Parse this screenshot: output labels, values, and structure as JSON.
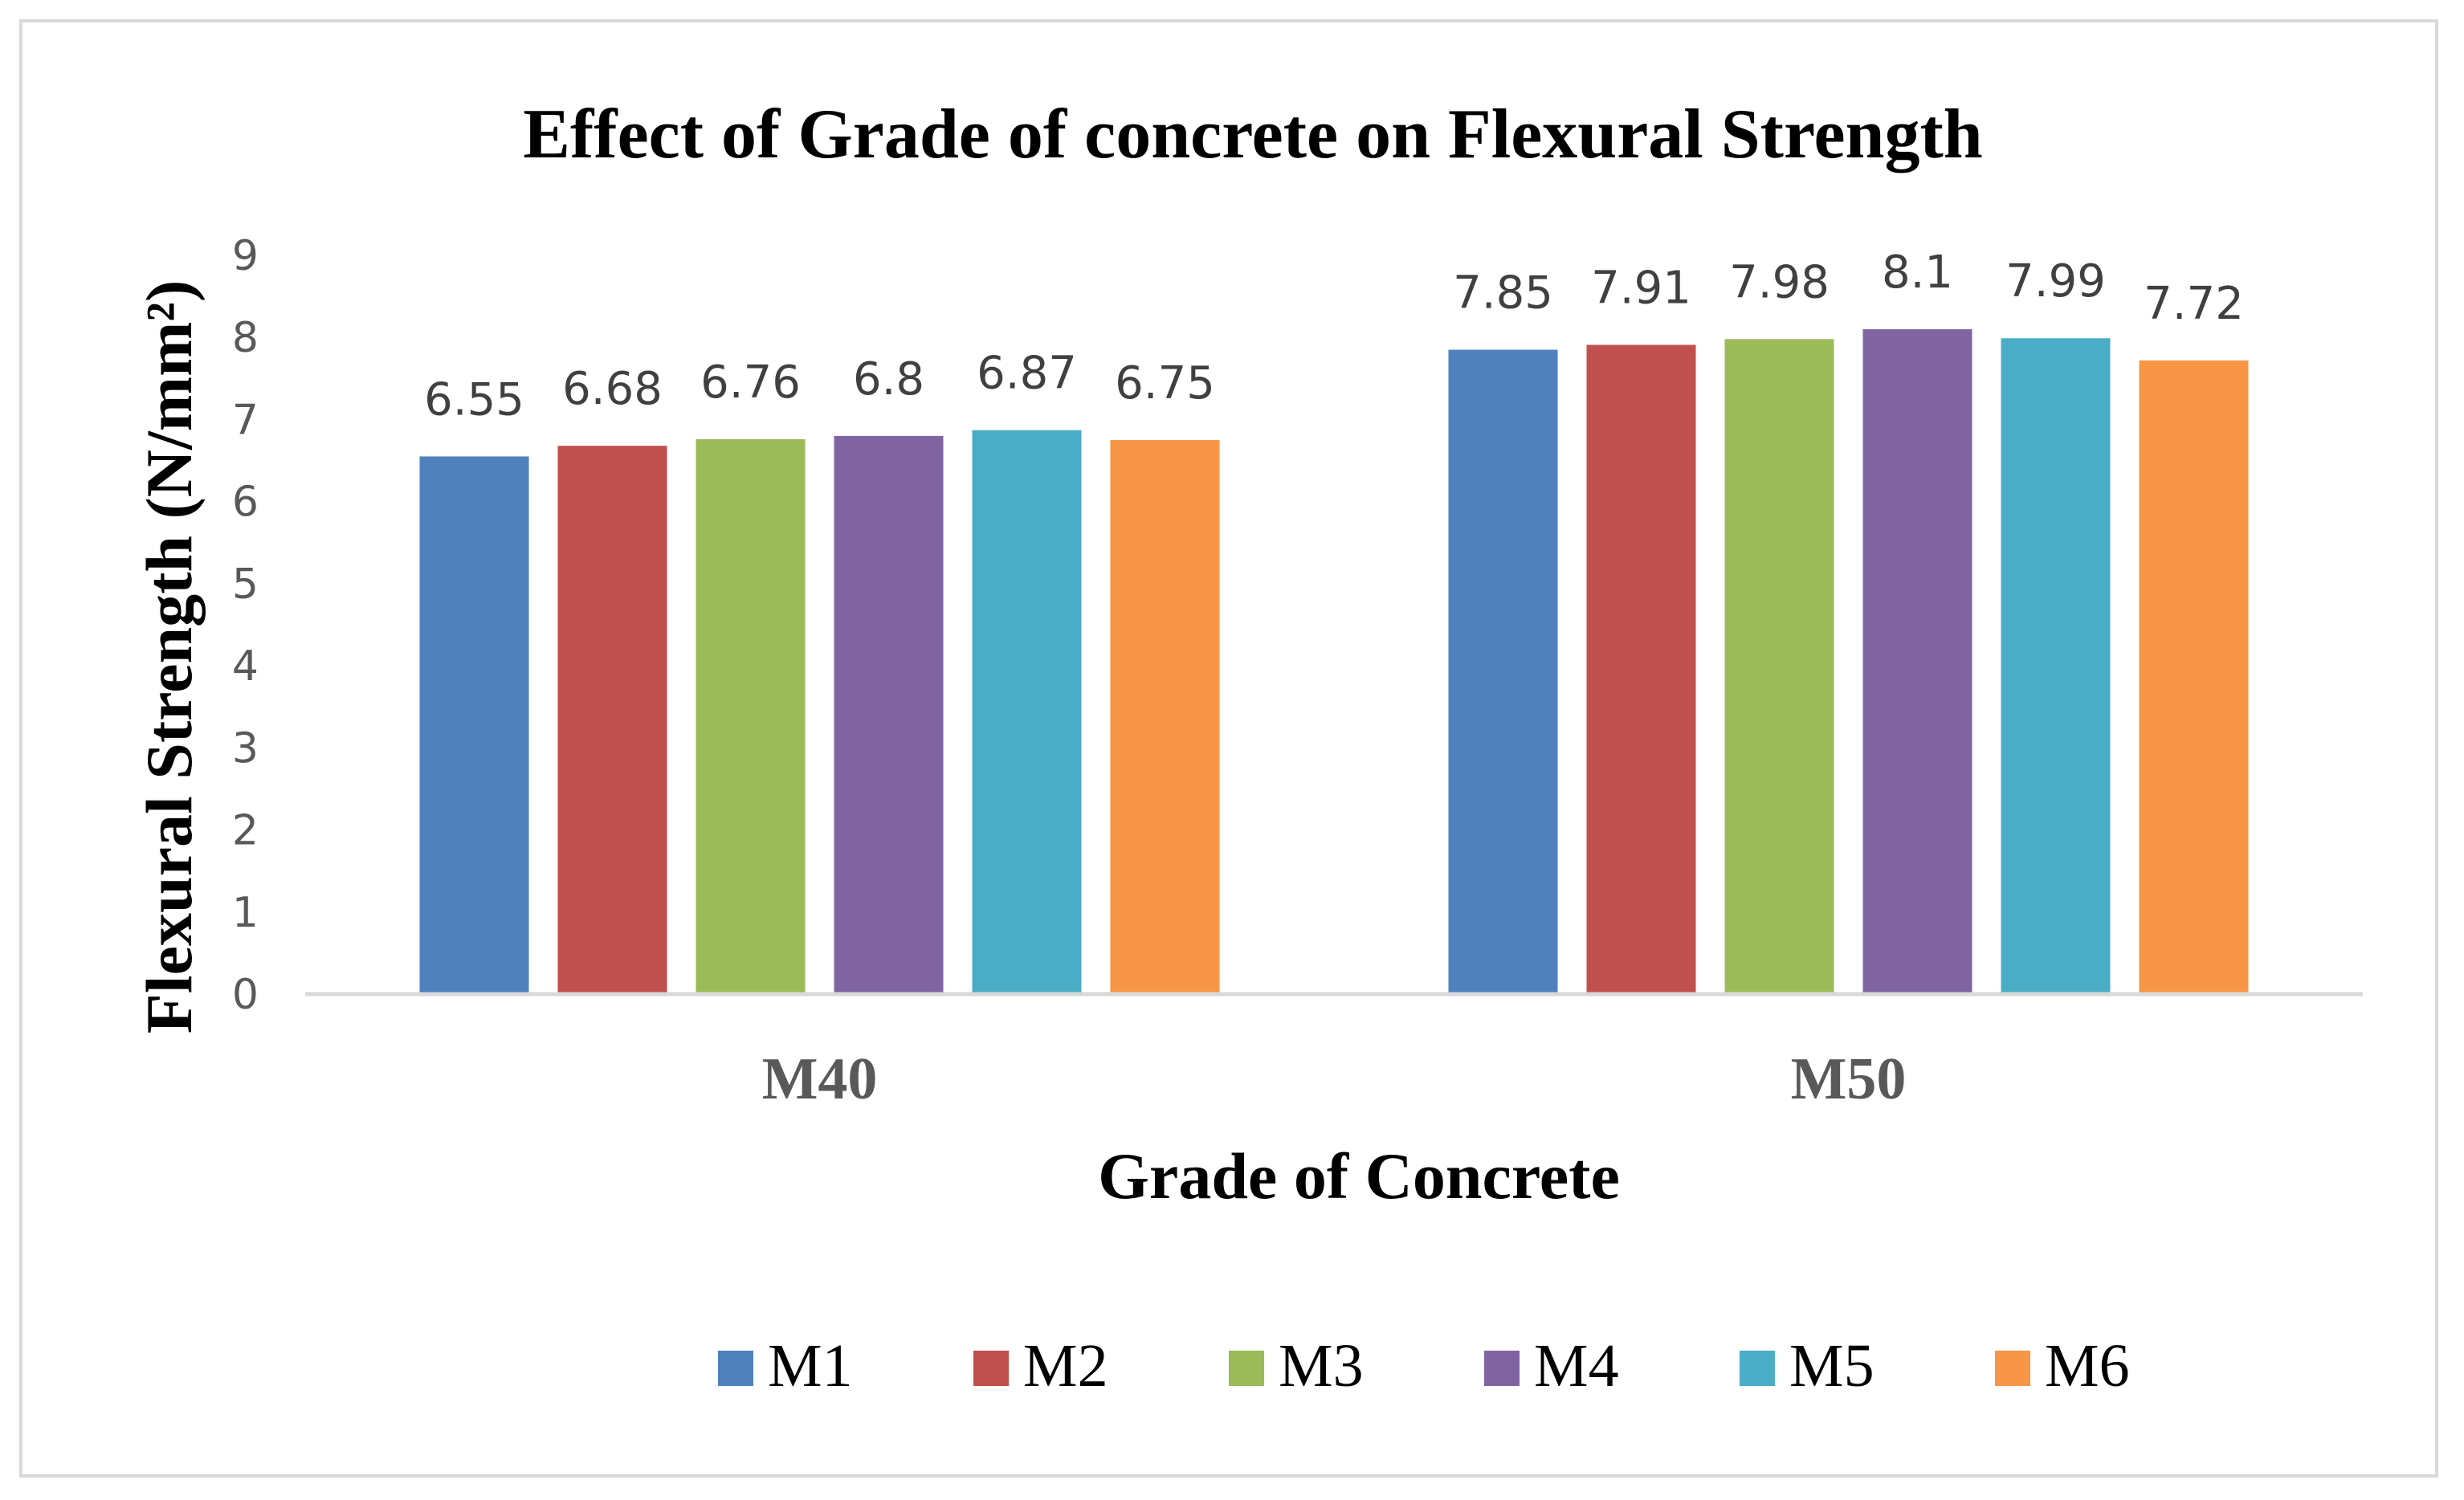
{
  "chart_data": {
    "type": "bar",
    "title": "Effect of Grade of concrete on Flexural Strength",
    "xlabel": "Grade of Concrete",
    "ylabel": "Flexural Strength (N/mm²)",
    "ylim": [
      0,
      9
    ],
    "yticks": [
      "0",
      "1",
      "2",
      "3",
      "4",
      "5",
      "6",
      "7",
      "8",
      "9"
    ],
    "grid": false,
    "legend_position": "bottom",
    "categories": [
      "M40",
      "M50"
    ],
    "series": [
      {
        "name": "M1",
        "color": "#4f81bd",
        "values": [
          6.55,
          7.85
        ],
        "labels": [
          "6.55",
          "7.85"
        ]
      },
      {
        "name": "M2",
        "color": "#c0504d",
        "values": [
          6.68,
          7.91
        ],
        "labels": [
          "6.68",
          "7.91"
        ]
      },
      {
        "name": "M3",
        "color": "#9bbb59",
        "values": [
          6.76,
          7.98
        ],
        "labels": [
          "6.76",
          "7.98"
        ]
      },
      {
        "name": "M4",
        "color": "#8064a2",
        "values": [
          6.8,
          8.1
        ],
        "labels": [
          "6.8",
          "8.1"
        ]
      },
      {
        "name": "M5",
        "color": "#4bacc6",
        "values": [
          6.87,
          7.99
        ],
        "labels": [
          "6.87",
          "7.99"
        ]
      },
      {
        "name": "M6",
        "color": "#f79646",
        "values": [
          6.75,
          7.72
        ],
        "labels": [
          "6.75",
          "7.72"
        ]
      }
    ]
  }
}
